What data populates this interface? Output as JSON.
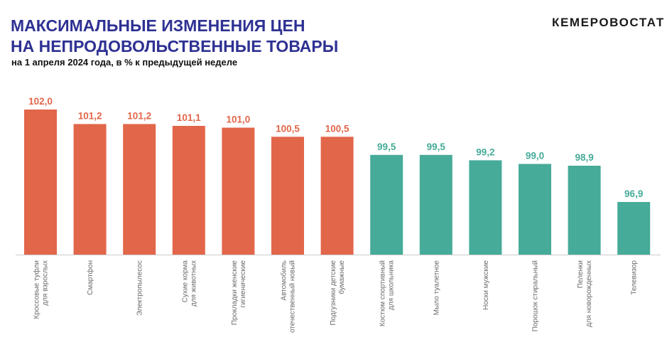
{
  "header": {
    "title_line1": "МАКСИМАЛЬНЫЕ ИЗМЕНЕНИЯ ЦЕН",
    "title_line2": "НА НЕПРОДОВОЛЬСТВЕННЫЕ ТОВАРЫ",
    "subtitle": "на 1 апреля 2024 года, в % к предыдущей неделе",
    "brand": "КЕМЕРОВОСТАТ"
  },
  "chart_data": {
    "type": "bar",
    "title": "МАКСИМАЛЬНЫЕ ИЗМЕНЕНИЯ ЦЕН НА НЕПРОДОВОЛЬСТВЕННЫЕ ТОВАРЫ",
    "subtitle": "на 1 апреля 2024 года, в % к предыдущей неделе",
    "xlabel": "",
    "ylabel": "",
    "ylim": [
      94.0,
      102.0
    ],
    "grid": false,
    "categories": [
      [
        "Кроссовые туфли",
        "для взрослых"
      ],
      [
        "Смартфон"
      ],
      [
        "Электропылесос"
      ],
      [
        "Сухие корма",
        "для животных"
      ],
      [
        "Прокладки женские",
        "гигиенические"
      ],
      [
        "Автомобиль",
        "отечественный новый"
      ],
      [
        "Подгузники детские",
        "бумажные"
      ],
      [
        "Костюм спортивный",
        "для школьника"
      ],
      [
        "Мыло туалетное"
      ],
      [
        "Носки мужские"
      ],
      [
        "Порошок стиральный"
      ],
      [
        "Пеленки",
        "для новорожденных"
      ],
      [
        "Телевизор"
      ]
    ],
    "values": [
      102.0,
      101.2,
      101.2,
      101.1,
      101.0,
      100.5,
      100.5,
      99.5,
      99.5,
      99.2,
      99.0,
      98.9,
      96.9
    ],
    "value_labels": [
      "102,0",
      "101,2",
      "101,2",
      "101,1",
      "101,0",
      "100,5",
      "100,5",
      "99,5",
      "99,5",
      "99,2",
      "99,0",
      "98,9",
      "96,9"
    ],
    "colors": {
      "increase": "#e2664a",
      "decrease": "#46ab98",
      "axis": "#cccccc"
    }
  }
}
